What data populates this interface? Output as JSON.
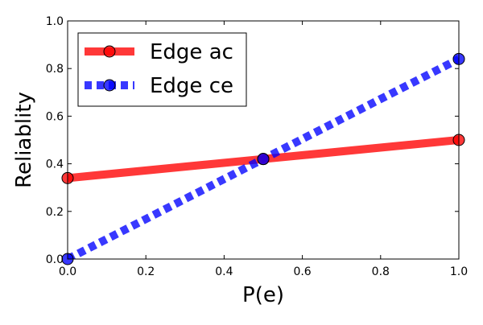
{
  "chart_data": {
    "type": "line",
    "xlabel": "P(e)",
    "ylabel": "Reliablity",
    "xlim": [
      0,
      1
    ],
    "ylim": [
      0,
      1
    ],
    "x_ticks": [
      "0.0",
      "0.2",
      "0.4",
      "0.6",
      "0.8",
      "1.0"
    ],
    "y_ticks": [
      "0.0",
      "0.2",
      "0.4",
      "0.6",
      "0.8",
      "1.0"
    ],
    "grid": false,
    "legend_position": "top-left",
    "series": [
      {
        "name": "Edge ac",
        "x": [
          0.0,
          0.5,
          1.0
        ],
        "y": [
          0.34,
          0.42,
          0.5
        ],
        "color": "#ff0000",
        "line_style": "solid",
        "marker": "circle"
      },
      {
        "name": "Edge ce",
        "x": [
          0.0,
          0.5,
          1.0
        ],
        "y": [
          0.0,
          0.42,
          0.84
        ],
        "color": "#0000ff",
        "line_style": "dotted",
        "marker": "circle"
      }
    ]
  }
}
